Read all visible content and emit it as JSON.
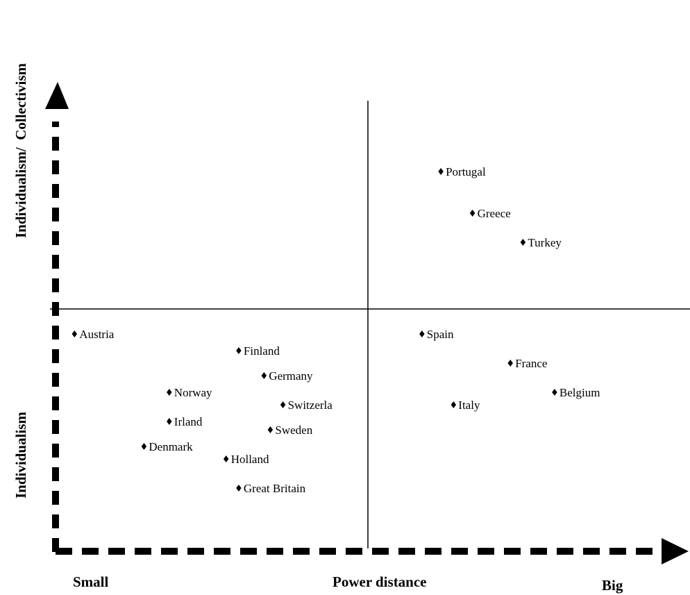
{
  "chart_data": {
    "type": "scatter",
    "title": "",
    "xlabel": "Power distance",
    "x_low_label": "Small",
    "x_high_label": "Big",
    "ylabel_low": "Individualism",
    "ylabel_high": "Individualism/  Collectivism",
    "xlim": [
      0,
      100
    ],
    "ylim": [
      0,
      100
    ],
    "grid": false,
    "quadrant_divider": {
      "x": 50,
      "y": 50
    },
    "points": [
      {
        "label": "Portugal",
        "x": 61,
        "y": 83
      },
      {
        "label": "Greece",
        "x": 66,
        "y": 73
      },
      {
        "label": "Turkey",
        "x": 74,
        "y": 66
      },
      {
        "label": "Austria",
        "x": 3,
        "y": 44
      },
      {
        "label": "Finland",
        "x": 29,
        "y": 40
      },
      {
        "label": "Germany",
        "x": 33,
        "y": 34
      },
      {
        "label": "Norway",
        "x": 18,
        "y": 30
      },
      {
        "label": "Switzerla",
        "x": 36,
        "y": 27
      },
      {
        "label": "Irland",
        "x": 18,
        "y": 23
      },
      {
        "label": "Sweden",
        "x": 34,
        "y": 21
      },
      {
        "label": "Denmark",
        "x": 14,
        "y": 17
      },
      {
        "label": "Holland",
        "x": 27,
        "y": 14
      },
      {
        "label": "Great Britain",
        "x": 29,
        "y": 7
      },
      {
        "label": "Spain",
        "x": 58,
        "y": 44
      },
      {
        "label": "France",
        "x": 72,
        "y": 37
      },
      {
        "label": "Belgium",
        "x": 79,
        "y": 30
      },
      {
        "label": "Italy",
        "x": 63,
        "y": 27
      }
    ]
  }
}
